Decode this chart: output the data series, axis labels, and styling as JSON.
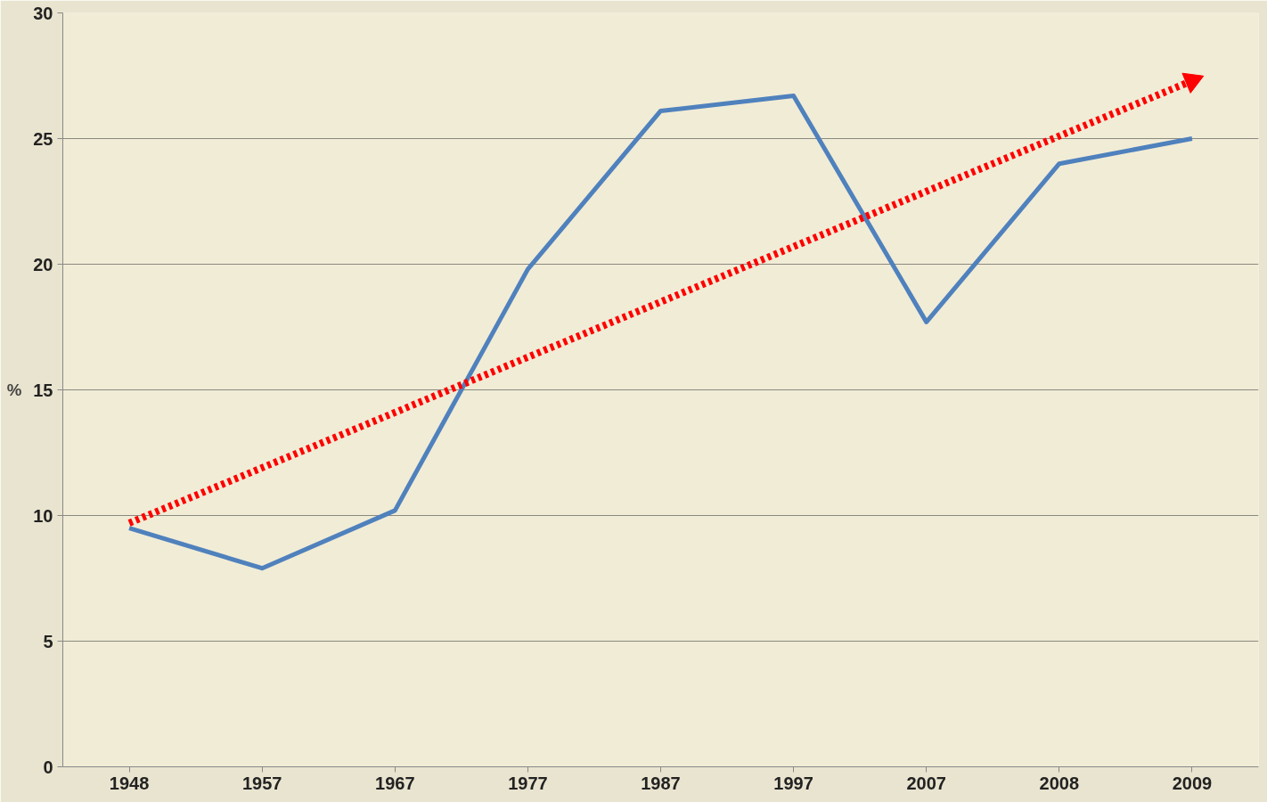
{
  "chart_data": {
    "type": "line",
    "ylabel": "%",
    "categories": [
      "1948",
      "1957",
      "1967",
      "1977",
      "1987",
      "1997",
      "2007",
      "2008",
      "2009"
    ],
    "series": [
      {
        "color": "#4f81bd",
        "values": [
          9.5,
          7.9,
          10.2,
          19.8,
          26.1,
          26.7,
          17.7,
          24.0,
          25.0
        ]
      },
      {
        "type": "line",
        "values": [
          9.7,
          11.9,
          14.1,
          16.3,
          18.5,
          20.7,
          22.9,
          25.1,
          27.3
        ],
        "color": "#ff0000",
        "line_style": "dotted"
      }
    ],
    "ylim": [
      0,
      30
    ],
    "yticks": [
      0,
      5,
      10,
      15,
      20,
      25,
      30
    ],
    "grid": "y"
  }
}
